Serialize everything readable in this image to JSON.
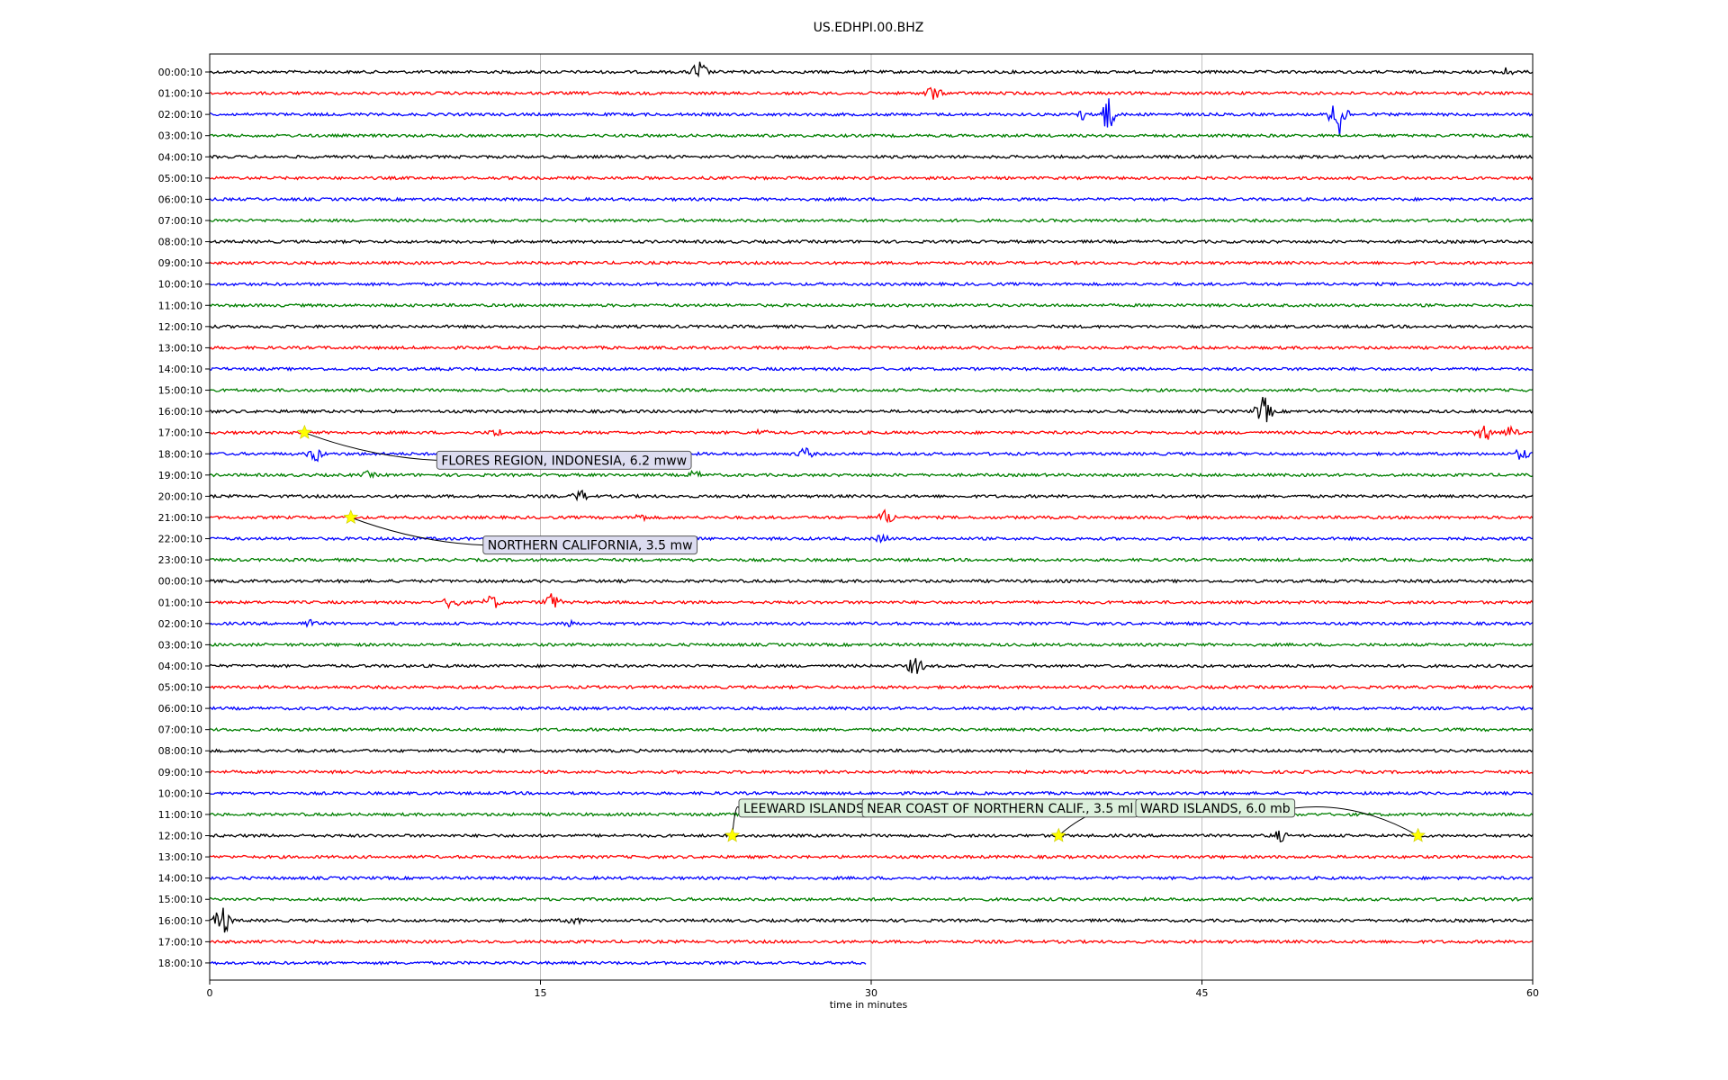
{
  "chart_data": {
    "type": "line",
    "title": "US.EDHPI.00.BHZ",
    "xlabel": "time in minutes",
    "ylabel": "",
    "xlim": [
      0,
      60
    ],
    "xticks": [
      0,
      15,
      30,
      45,
      60
    ],
    "grid": "vertical",
    "trace_colors": [
      "#000000",
      "#ff0000",
      "#0000ff",
      "#007f00"
    ],
    "row_labels": [
      "00:00:10",
      "01:00:10",
      "02:00:10",
      "03:00:10",
      "04:00:10",
      "05:00:10",
      "06:00:10",
      "07:00:10",
      "08:00:10",
      "09:00:10",
      "10:00:10",
      "11:00:10",
      "12:00:10",
      "13:00:10",
      "14:00:10",
      "15:00:10",
      "16:00:10",
      "17:00:10",
      "18:00:10",
      "19:00:10",
      "20:00:10",
      "21:00:10",
      "22:00:10",
      "23:00:10",
      "00:00:10",
      "01:00:10",
      "02:00:10",
      "03:00:10",
      "04:00:10",
      "05:00:10",
      "06:00:10",
      "07:00:10",
      "08:00:10",
      "09:00:10",
      "10:00:10",
      "11:00:10",
      "12:00:10",
      "13:00:10",
      "14:00:10",
      "15:00:10",
      "16:00:10",
      "17:00:10",
      "18:00:10"
    ],
    "last_row_end_minute": 29.8,
    "bursts": [
      {
        "row": 0,
        "minute": 22.2,
        "amp": 14
      },
      {
        "row": 0,
        "minute": 58.8,
        "amp": 6
      },
      {
        "row": 1,
        "minute": 32.8,
        "amp": 10
      },
      {
        "row": 2,
        "minute": 39.5,
        "amp": 8
      },
      {
        "row": 2,
        "minute": 40.7,
        "amp": 22
      },
      {
        "row": 2,
        "minute": 51.2,
        "amp": 30
      },
      {
        "row": 16,
        "minute": 47.8,
        "amp": 18
      },
      {
        "row": 17,
        "minute": 13.0,
        "amp": 6
      },
      {
        "row": 17,
        "minute": 25.0,
        "amp": 5
      },
      {
        "row": 17,
        "minute": 57.8,
        "amp": 12
      },
      {
        "row": 17,
        "minute": 59.0,
        "amp": 9
      },
      {
        "row": 18,
        "minute": 4.8,
        "amp": 10
      },
      {
        "row": 18,
        "minute": 27.0,
        "amp": 8
      },
      {
        "row": 18,
        "minute": 59.5,
        "amp": 8
      },
      {
        "row": 19,
        "minute": 7.2,
        "amp": 5
      },
      {
        "row": 19,
        "minute": 22.0,
        "amp": 6
      },
      {
        "row": 20,
        "minute": 16.8,
        "amp": 8
      },
      {
        "row": 21,
        "minute": 19.5,
        "amp": 6
      },
      {
        "row": 21,
        "minute": 30.7,
        "amp": 10
      },
      {
        "row": 22,
        "minute": 30.5,
        "amp": 6
      },
      {
        "row": 25,
        "minute": 11.0,
        "amp": 10
      },
      {
        "row": 25,
        "minute": 12.8,
        "amp": 10
      },
      {
        "row": 25,
        "minute": 15.5,
        "amp": 12
      },
      {
        "row": 26,
        "minute": 4.5,
        "amp": 6
      },
      {
        "row": 26,
        "minute": 16.3,
        "amp": 6
      },
      {
        "row": 28,
        "minute": 32.0,
        "amp": 12
      },
      {
        "row": 36,
        "minute": 48.5,
        "amp": 8
      },
      {
        "row": 40,
        "minute": 0.6,
        "amp": 18
      },
      {
        "row": 40,
        "minute": 16.5,
        "amp": 6
      }
    ],
    "events": [
      {
        "row": 17,
        "minute": 4.3,
        "label": "FLORES REGION, INDONESIA, 6.2 mww",
        "box_row": 18.3,
        "box_minute": 10.3,
        "box_color": "#dcdcf0"
      },
      {
        "row": 21,
        "minute": 6.4,
        "label": "NORTHERN CALIFORNIA, 3.5 mw",
        "box_row": 22.3,
        "box_minute": 12.4,
        "box_color": "#dcdcf0"
      },
      {
        "row": 36,
        "minute": 23.7,
        "label": "LEEWARD ISLANDS",
        "box_row": 34.7,
        "box_minute": 24.0,
        "box_color": "#dcf0dc"
      },
      {
        "row": 36,
        "minute": 38.5,
        "label": "NEAR COAST OF NORTHERN CALIF., 3.5 ml",
        "box_row": 34.7,
        "box_minute": 29.6,
        "box_color": "#dcf0dc"
      },
      {
        "row": 36,
        "minute": 54.8,
        "label": "WARD ISLANDS, 6.0 mb",
        "box_row": 34.7,
        "box_minute": 42.0,
        "box_color": "#dcf0dc"
      }
    ]
  }
}
